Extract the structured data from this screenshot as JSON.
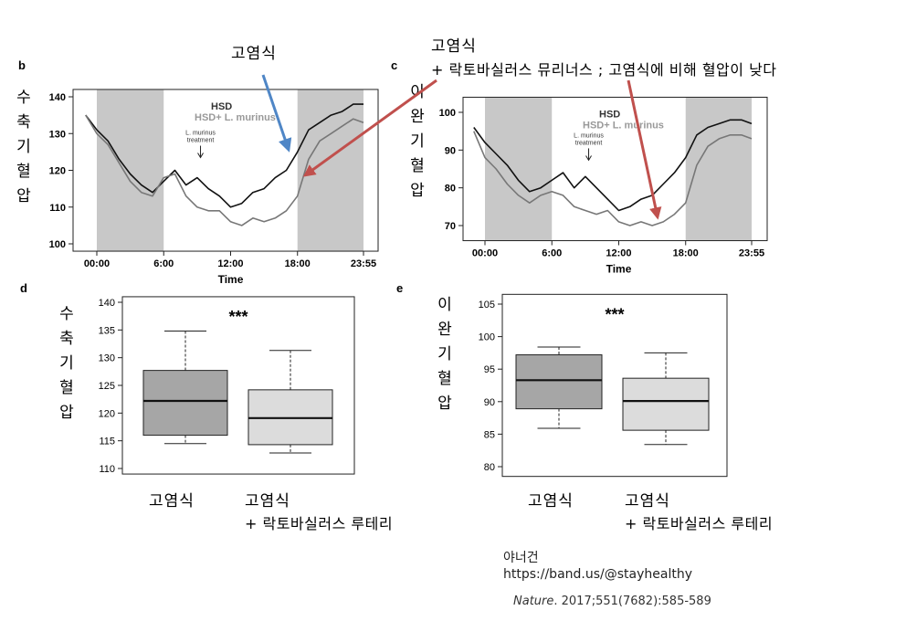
{
  "annotations": {
    "top_left": "고염식",
    "top_right_1": "고염식",
    "top_right_2": "+ 락토바실러스 뮤리너스 ; 고염식에 비해 혈압이 낮다",
    "arrow_blue_color": "#4f86c6",
    "arrow_red_color": "#c0504d"
  },
  "credit": {
    "author": "야너건",
    "url": "https://band.us/@stayhealthy",
    "journal": "Nature",
    "ref": ". 2017;551(7682):585-589"
  },
  "chart_data": [
    {
      "panel": "b",
      "type": "line",
      "ylabel": "수축기혈압",
      "xlabel": "Time",
      "xticks": [
        "00:00",
        "6:00",
        "12:00",
        "18:00",
        "23:55"
      ],
      "xtick_hours": [
        0,
        6,
        12,
        18,
        23.92
      ],
      "ylim": [
        98,
        142
      ],
      "yticks": [
        100,
        110,
        120,
        130,
        140
      ],
      "shaded_hours": [
        [
          0,
          6
        ],
        [
          18,
          23.92
        ]
      ],
      "legend": [
        "HSD",
        "HSD+ L. murinus"
      ],
      "annotation": [
        "L. murinus",
        "treatment"
      ],
      "annotation_hour": 9.3,
      "series": [
        {
          "name": "HSD",
          "color": "#111111",
          "x": [
            -1,
            0,
            1,
            2,
            3,
            4,
            5,
            6,
            7,
            8,
            9,
            10,
            11,
            12,
            13,
            14,
            15,
            16,
            17,
            18,
            19,
            20,
            21,
            22,
            23,
            23.92
          ],
          "y": [
            135,
            131,
            128,
            123,
            119,
            116,
            114,
            117,
            120,
            116,
            118,
            115,
            113,
            110,
            111,
            114,
            115,
            118,
            120,
            125,
            131,
            133,
            135,
            136,
            138,
            138
          ]
        },
        {
          "name": "HSD+ L. murinus",
          "color": "#777777",
          "x": [
            -1,
            0,
            1,
            2,
            3,
            4,
            5,
            6,
            7,
            8,
            9,
            10,
            11,
            12,
            13,
            14,
            15,
            16,
            17,
            18,
            19,
            20,
            21,
            22,
            23,
            23.92
          ],
          "y": [
            135,
            130,
            127,
            122,
            117,
            114,
            113,
            118,
            119,
            113,
            110,
            109,
            109,
            106,
            105,
            107,
            106,
            107,
            109,
            113,
            123,
            128,
            130,
            132,
            134,
            133
          ]
        }
      ]
    },
    {
      "panel": "c",
      "type": "line",
      "ylabel": "이완기혈압",
      "xlabel": "Time",
      "xticks": [
        "00:00",
        "6:00",
        "12:00",
        "18:00",
        "23:55"
      ],
      "xtick_hours": [
        0,
        6,
        12,
        18,
        23.92
      ],
      "ylim": [
        66,
        104
      ],
      "yticks": [
        70,
        80,
        90,
        100
      ],
      "shaded_hours": [
        [
          0,
          6
        ],
        [
          18,
          23.92
        ]
      ],
      "legend": [
        "HSD",
        "HSD+ L. murinus"
      ],
      "annotation": [
        "L. murinus",
        "treatment"
      ],
      "annotation_hour": 9.3,
      "series": [
        {
          "name": "HSD",
          "color": "#111111",
          "x": [
            -1,
            0,
            1,
            2,
            3,
            4,
            5,
            6,
            7,
            8,
            9,
            10,
            11,
            12,
            13,
            14,
            15,
            16,
            17,
            18,
            19,
            20,
            21,
            22,
            23,
            23.92
          ],
          "y": [
            96,
            92,
            89,
            86,
            82,
            79,
            80,
            82,
            84,
            80,
            83,
            80,
            77,
            74,
            75,
            77,
            78,
            81,
            84,
            88,
            94,
            96,
            97,
            98,
            98,
            97
          ]
        },
        {
          "name": "HSD+ L. murinus",
          "color": "#777777",
          "x": [
            -1,
            0,
            1,
            2,
            3,
            4,
            5,
            6,
            7,
            8,
            9,
            10,
            11,
            12,
            13,
            14,
            15,
            16,
            17,
            18,
            19,
            20,
            21,
            22,
            23,
            23.92
          ],
          "y": [
            95,
            88,
            85,
            81,
            78,
            76,
            78,
            79,
            78,
            75,
            74,
            73,
            74,
            71,
            70,
            71,
            70,
            71,
            73,
            76,
            86,
            91,
            93,
            94,
            94,
            93
          ]
        }
      ]
    },
    {
      "panel": "d",
      "type": "box",
      "ylabel": "수축기혈압",
      "significance": "***",
      "ylim": [
        109,
        141
      ],
      "yticks": [
        110,
        115,
        120,
        125,
        130,
        135,
        140
      ],
      "categories": [
        "고염식",
        "고염식\n+ 락토바실러스 루테리"
      ],
      "boxes": [
        {
          "label_1": "고염식",
          "label_2": "",
          "min": 114.5,
          "q1": 116,
          "median": 122.2,
          "q3": 127.7,
          "max": 134.8,
          "color": "#a6a6a6"
        },
        {
          "label_1": "고염식",
          "label_2": "+ 락토바실러스 루테리",
          "min": 112.8,
          "q1": 114.3,
          "median": 119.1,
          "q3": 124.2,
          "max": 131.3,
          "color": "#dcdcdc"
        }
      ]
    },
    {
      "panel": "e",
      "type": "box",
      "ylabel": "이완기혈압",
      "significance": "***",
      "ylim": [
        78.5,
        106.5
      ],
      "yticks": [
        80,
        85,
        90,
        95,
        100,
        105
      ],
      "categories": [
        "고염식",
        "고염식\n+ 락토바실러스 루테리"
      ],
      "boxes": [
        {
          "label_1": "고염식",
          "label_2": "",
          "min": 85.9,
          "q1": 88.9,
          "median": 93.3,
          "q3": 97.2,
          "max": 98.4,
          "color": "#a6a6a6"
        },
        {
          "label_1": "고염식",
          "label_2": "+ 락토바실러스 루테리",
          "min": 83.4,
          "q1": 85.6,
          "median": 90.1,
          "q3": 93.6,
          "max": 97.5,
          "color": "#dcdcdc"
        }
      ]
    }
  ]
}
